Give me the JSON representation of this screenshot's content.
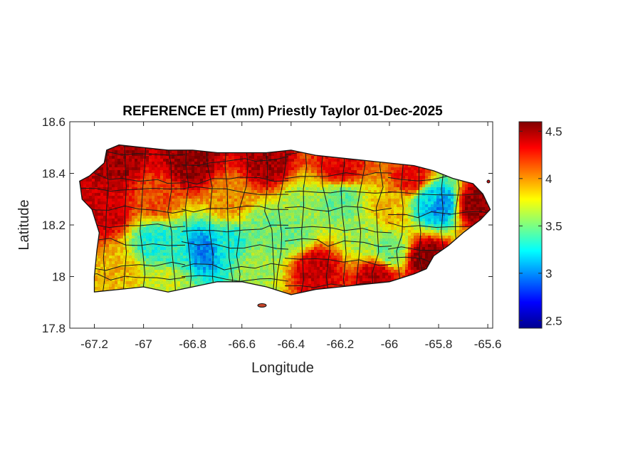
{
  "chart_data": {
    "type": "heatmap",
    "title": "REFERENCE ET (mm) Priestly Taylor 01-Dec-2025",
    "xlabel": "Longitude",
    "ylabel": "Latitude",
    "xlim": [
      -67.3,
      -65.58
    ],
    "ylim": [
      17.8,
      18.6
    ],
    "xticks": [
      -67.2,
      -67,
      -66.8,
      -66.6,
      -66.4,
      -66.2,
      -66,
      -65.8,
      -65.6
    ],
    "xtick_labels": [
      "-67.2",
      "-67",
      "-66.8",
      "-66.6",
      "-66.4",
      "-66.2",
      "-66",
      "-65.8",
      "-65.6"
    ],
    "yticks": [
      17.8,
      18,
      18.2,
      18.4,
      18.6
    ],
    "ytick_labels": [
      "17.8",
      "18",
      "18.2",
      "18.4",
      "18.6"
    ],
    "colorbar": {
      "colormap": "jet",
      "range": [
        2.42,
        4.6
      ],
      "ticks": [
        2.5,
        3,
        3.5,
        4,
        4.5
      ],
      "tick_labels": [
        "2.5",
        "3",
        "3.5",
        "4",
        "4.5"
      ]
    },
    "coastline": [
      [
        -67.26,
        18.37
      ],
      [
        -67.22,
        18.39
      ],
      [
        -67.16,
        18.44
      ],
      [
        -67.15,
        18.49
      ],
      [
        -67.1,
        18.51
      ],
      [
        -67.0,
        18.5
      ],
      [
        -66.9,
        18.49
      ],
      [
        -66.8,
        18.49
      ],
      [
        -66.7,
        18.48
      ],
      [
        -66.6,
        18.48
      ],
      [
        -66.5,
        18.48
      ],
      [
        -66.4,
        18.49
      ],
      [
        -66.3,
        18.47
      ],
      [
        -66.2,
        18.46
      ],
      [
        -66.1,
        18.45
      ],
      [
        -66.0,
        18.44
      ],
      [
        -65.9,
        18.43
      ],
      [
        -65.82,
        18.41
      ],
      [
        -65.74,
        18.38
      ],
      [
        -65.66,
        18.36
      ],
      [
        -65.62,
        18.32
      ],
      [
        -65.59,
        18.26
      ],
      [
        -65.63,
        18.22
      ],
      [
        -65.7,
        18.17
      ],
      [
        -65.76,
        18.12
      ],
      [
        -65.82,
        18.08
      ],
      [
        -65.85,
        18.03
      ],
      [
        -65.9,
        18.01
      ],
      [
        -66.0,
        17.98
      ],
      [
        -66.1,
        17.97
      ],
      [
        -66.2,
        17.96
      ],
      [
        -66.3,
        17.95
      ],
      [
        -66.4,
        17.93
      ],
      [
        -66.5,
        17.96
      ],
      [
        -66.6,
        17.98
      ],
      [
        -66.7,
        17.98
      ],
      [
        -66.8,
        17.96
      ],
      [
        -66.9,
        17.94
      ],
      [
        -67.0,
        17.96
      ],
      [
        -67.1,
        17.95
      ],
      [
        -67.2,
        17.94
      ],
      [
        -67.2,
        18.0
      ],
      [
        -67.19,
        18.1
      ],
      [
        -67.18,
        18.17
      ],
      [
        -67.21,
        18.26
      ],
      [
        -67.25,
        18.3
      ]
    ],
    "field_points": [
      {
        "lon": -67.1,
        "lat": 18.45,
        "value": 4.5
      },
      {
        "lon": -66.8,
        "lat": 18.44,
        "value": 4.55
      },
      {
        "lon": -66.5,
        "lat": 18.44,
        "value": 4.5
      },
      {
        "lon": -66.2,
        "lat": 18.42,
        "value": 4.35
      },
      {
        "lon": -65.9,
        "lat": 18.38,
        "value": 4.3
      },
      {
        "lon": -65.65,
        "lat": 18.28,
        "value": 4.55
      },
      {
        "lon": -67.15,
        "lat": 18.25,
        "value": 4.4
      },
      {
        "lon": -66.95,
        "lat": 18.3,
        "value": 4.15
      },
      {
        "lon": -66.65,
        "lat": 18.3,
        "value": 4.0
      },
      {
        "lon": -66.35,
        "lat": 18.27,
        "value": 3.6
      },
      {
        "lon": -66.2,
        "lat": 18.3,
        "value": 3.45
      },
      {
        "lon": -66.0,
        "lat": 18.25,
        "value": 3.9
      },
      {
        "lon": -65.8,
        "lat": 18.28,
        "value": 3.0
      },
      {
        "lon": -65.83,
        "lat": 18.3,
        "value": 3.2
      },
      {
        "lon": -66.95,
        "lat": 18.13,
        "value": 3.3
      },
      {
        "lon": -66.87,
        "lat": 18.08,
        "value": 3.35
      },
      {
        "lon": -66.76,
        "lat": 18.1,
        "value": 3.0
      },
      {
        "lon": -66.65,
        "lat": 18.12,
        "value": 3.3
      },
      {
        "lon": -66.5,
        "lat": 18.17,
        "value": 3.5
      },
      {
        "lon": -66.4,
        "lat": 18.17,
        "value": 3.5
      },
      {
        "lon": -66.1,
        "lat": 18.15,
        "value": 3.6
      },
      {
        "lon": -66.0,
        "lat": 18.1,
        "value": 3.5
      },
      {
        "lon": -66.55,
        "lat": 18.05,
        "value": 3.6
      },
      {
        "lon": -67.1,
        "lat": 18.02,
        "value": 3.9
      },
      {
        "lon": -66.3,
        "lat": 18.03,
        "value": 4.4
      },
      {
        "lon": -66.05,
        "lat": 18.0,
        "value": 4.45
      },
      {
        "lon": -65.85,
        "lat": 18.07,
        "value": 4.55
      },
      {
        "lon": -66.9,
        "lat": 17.99,
        "value": 3.7
      }
    ],
    "grid": false,
    "colorbar_position": "right"
  }
}
